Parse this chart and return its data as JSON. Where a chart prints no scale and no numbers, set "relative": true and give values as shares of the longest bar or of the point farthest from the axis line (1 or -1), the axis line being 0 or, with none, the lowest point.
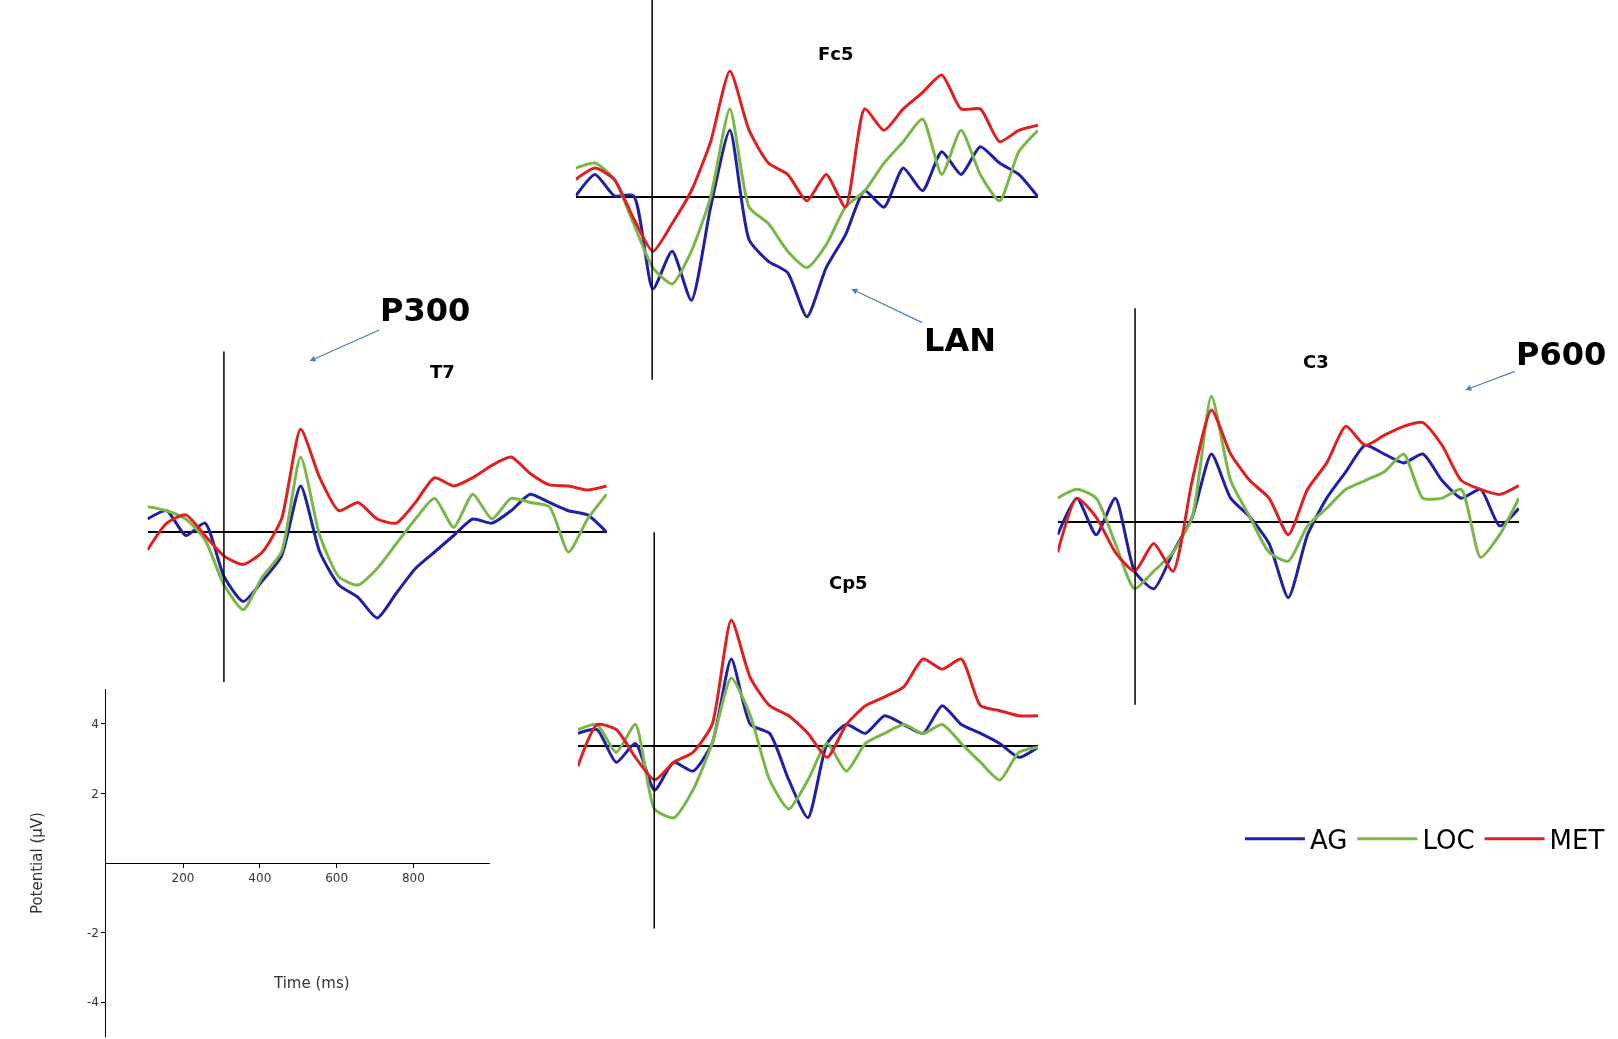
{
  "chart_data": [
    {
      "type": "line",
      "title": "Fc5",
      "relative": true,
      "legend": "bottom right",
      "annotations": [
        "LAN"
      ],
      "categories": [
        null,
        null,
        null,
        null,
        null,
        null,
        null,
        null,
        null,
        null,
        null,
        null,
        null,
        null,
        null,
        null,
        null,
        null,
        null,
        null,
        null,
        null,
        null,
        null,
        null
      ],
      "series": [
        {
          "name": "AG",
          "color": "#1f1fa8",
          "values": [
            0.01,
            0.18,
            0.01,
            0.01,
            -0.73,
            -0.43,
            -0.82,
            -0.08,
            0.53,
            -0.34,
            -0.51,
            -0.6,
            -0.95,
            -0.56,
            -0.3,
            0.05,
            -0.08,
            0.23,
            0.05,
            0.36,
            0.18,
            0.4,
            0.27,
            0.18,
            0.0
          ]
        },
        {
          "name": "LOC",
          "color": "#7ab648",
          "values": [
            0.23,
            0.27,
            0.14,
            -0.21,
            -0.56,
            -0.69,
            -0.43,
            0.0,
            0.7,
            -0.08,
            -0.21,
            -0.43,
            -0.56,
            -0.38,
            -0.08,
            0.05,
            0.27,
            0.44,
            0.62,
            0.18,
            0.53,
            0.18,
            -0.03,
            0.36,
            0.53
          ]
        },
        {
          "name": "MET",
          "color": "#e02020",
          "values": [
            0.14,
            0.23,
            0.14,
            -0.17,
            -0.43,
            -0.21,
            0.05,
            0.44,
            1.0,
            0.53,
            0.27,
            0.18,
            -0.03,
            0.18,
            -0.08,
            0.7,
            0.53,
            0.7,
            0.83,
            0.97,
            0.7,
            0.7,
            0.44,
            0.53,
            0.57
          ]
        }
      ]
    },
    {
      "type": "line",
      "title": "T7",
      "relative": true,
      "annotations": [
        "P300"
      ],
      "categories": [
        null,
        null,
        null,
        null,
        null,
        null,
        null,
        null,
        null,
        null,
        null,
        null,
        null,
        null,
        null,
        null,
        null,
        null,
        null,
        null,
        null,
        null,
        null,
        null,
        null
      ],
      "series": [
        {
          "color": "#1f1fa8",
          "values": [
            0.13,
            0.21,
            -0.03,
            0.09,
            -0.43,
            -0.67,
            -0.47,
            -0.23,
            0.45,
            -0.19,
            -0.51,
            -0.63,
            -0.83,
            -0.59,
            -0.35,
            -0.19,
            -0.03,
            0.13,
            0.09,
            0.21,
            0.37,
            0.29,
            0.21,
            0.17,
            0.0
          ]
        },
        {
          "color": "#7ab648",
          "values": [
            0.25,
            0.21,
            0.13,
            -0.07,
            -0.51,
            -0.75,
            -0.43,
            -0.19,
            0.73,
            -0.03,
            -0.43,
            -0.51,
            -0.35,
            -0.11,
            0.13,
            0.33,
            0.05,
            0.37,
            0.13,
            0.33,
            0.29,
            0.25,
            -0.19,
            0.13,
            0.37
          ]
        },
        {
          "color": "#e02020",
          "values": [
            -0.17,
            0.09,
            0.17,
            -0.03,
            -0.23,
            -0.31,
            -0.19,
            0.13,
            1.0,
            0.53,
            0.21,
            0.29,
            0.13,
            0.09,
            0.29,
            0.53,
            0.45,
            0.53,
            0.65,
            0.73,
            0.57,
            0.46,
            0.45,
            0.41,
            0.45
          ]
        }
      ]
    },
    {
      "type": "line",
      "title": "C3",
      "relative": true,
      "annotations": [
        "P600"
      ],
      "categories": [
        null,
        null,
        null,
        null,
        null,
        null,
        null,
        null,
        null,
        null,
        null,
        null,
        null,
        null,
        null,
        null,
        null,
        null,
        null,
        null,
        null,
        null,
        null,
        null,
        null
      ],
      "series": [
        {
          "color": "#1f1fa8",
          "values": [
            -0.1,
            0.19,
            -0.1,
            0.19,
            -0.39,
            -0.53,
            -0.24,
            0.04,
            0.54,
            0.19,
            0.04,
            -0.17,
            -0.6,
            -0.1,
            0.19,
            0.4,
            0.61,
            0.54,
            0.47,
            0.54,
            0.33,
            0.19,
            0.26,
            -0.03,
            0.11
          ]
        },
        {
          "color": "#7ab648",
          "values": [
            0.19,
            0.26,
            0.19,
            -0.17,
            -0.53,
            -0.39,
            -0.24,
            0.04,
            1.0,
            0.33,
            0.04,
            -0.24,
            -0.31,
            -0.03,
            0.11,
            0.26,
            0.33,
            0.4,
            0.54,
            0.19,
            0.19,
            0.26,
            -0.28,
            -0.1,
            0.19
          ]
        },
        {
          "color": "#e02020",
          "values": [
            -0.24,
            0.19,
            0.04,
            -0.24,
            -0.39,
            -0.17,
            -0.39,
            0.33,
            0.89,
            0.54,
            0.33,
            0.19,
            -0.1,
            0.26,
            0.47,
            0.76,
            0.61,
            0.69,
            0.76,
            0.79,
            0.61,
            0.33,
            0.26,
            0.22,
            0.29
          ]
        }
      ]
    },
    {
      "type": "line",
      "title": "Cp5",
      "relative": true,
      "categories": [
        null,
        null,
        null,
        null,
        null,
        null,
        null,
        null,
        null,
        null,
        null,
        null,
        null,
        null,
        null,
        null,
        null,
        null,
        null,
        null,
        null,
        null,
        null,
        null,
        null
      ],
      "series": [
        {
          "color": "#1f1fa8",
          "values": [
            0.1,
            0.13,
            -0.13,
            0.02,
            -0.35,
            -0.13,
            -0.2,
            0.02,
            0.69,
            0.17,
            0.1,
            -0.27,
            -0.57,
            0.02,
            0.17,
            0.1,
            0.24,
            0.17,
            0.1,
            0.32,
            0.17,
            0.1,
            0.02,
            -0.09,
            -0.01
          ]
        },
        {
          "color": "#7ab648",
          "values": [
            0.13,
            0.17,
            -0.05,
            0.17,
            -0.5,
            -0.57,
            -0.35,
            0.02,
            0.54,
            0.24,
            -0.27,
            -0.5,
            -0.27,
            0.02,
            -0.2,
            0.02,
            0.1,
            0.17,
            0.1,
            0.17,
            0.02,
            -0.13,
            -0.27,
            -0.05,
            -0.01
          ]
        },
        {
          "color": "#e02020",
          "values": [
            -0.16,
            0.17,
            0.13,
            -0.09,
            -0.27,
            -0.13,
            -0.05,
            0.17,
            1.0,
            0.54,
            0.32,
            0.24,
            0.1,
            -0.09,
            0.17,
            0.32,
            0.39,
            0.47,
            0.69,
            0.61,
            0.69,
            0.32,
            0.28,
            0.24,
            0.24
          ]
        }
      ]
    },
    {
      "type": "line",
      "xlabel": "Time (ms)",
      "ylabel": "Potential (μV)",
      "xlim": [
        0,
        1000
      ],
      "ylim": [
        -5,
        5
      ],
      "xticks": [
        200,
        400,
        600,
        800
      ],
      "yticks": [
        -4,
        -2,
        2,
        4
      ]
    }
  ]
}
